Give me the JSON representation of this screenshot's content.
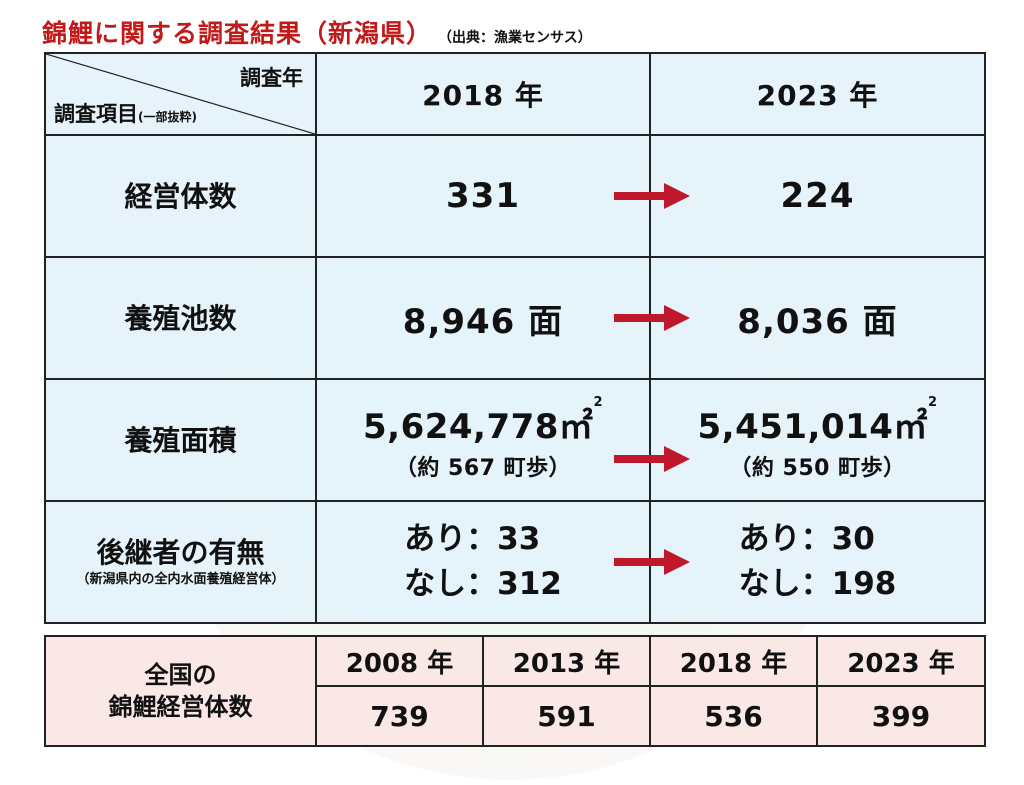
{
  "title": {
    "main": "錦鯉に関する調査結果（新潟県）",
    "source": "（出典：漁業センサス）"
  },
  "main_table": {
    "corner_year": "調査年",
    "corner_item": "調査項目",
    "corner_item_note": "(一部抜粋)",
    "years": [
      "2018 年",
      "2023 年"
    ],
    "rows": [
      {
        "label": "経営体数",
        "v2018": "331",
        "v2023": "224"
      },
      {
        "label": "養殖池数",
        "v2018": "8,946 面",
        "v2023": "8,036 面"
      },
      {
        "label": "養殖面積",
        "v2018": "5,624,778㎡",
        "v2018_sub": "（約 567 町歩）",
        "v2023": "5,451,014㎡",
        "v2023_sub": "（約 550 町歩）",
        "sup": "2"
      },
      {
        "label": "後継者の有無",
        "note": "（新潟県内の全内水面養殖経営体）",
        "v2018_a": "あり：33",
        "v2018_b": "なし：312",
        "v2023_a": "あり：30",
        "v2023_b": "なし：198"
      }
    ]
  },
  "national_table": {
    "label_line1": "全国の",
    "label_line2": "錦鯉経営体数",
    "years": [
      "2008 年",
      "2013 年",
      "2018 年",
      "2023 年"
    ],
    "values": [
      "739",
      "591",
      "536",
      "399"
    ]
  },
  "colors": {
    "title_red": "#c21a1a",
    "arrow_red": "#c0182b",
    "main_bg": "#e4f2fa",
    "national_bg": "#f8e6e4"
  }
}
